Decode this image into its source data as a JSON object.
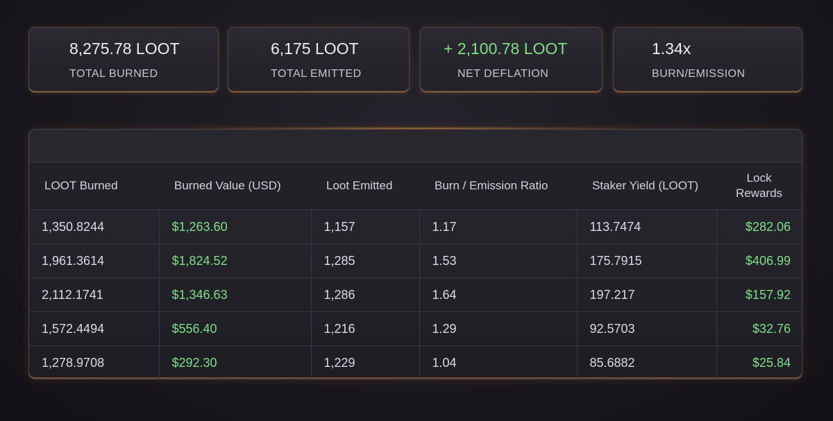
{
  "stats": [
    {
      "value": "8,275.78 LOOT",
      "label": "TOTAL BURNED",
      "positive": false
    },
    {
      "value": "6,175 LOOT",
      "label": "TOTAL EMITTED",
      "positive": false
    },
    {
      "value": "+ 2,100.78 LOOT",
      "label": "NET DEFLATION",
      "positive": true
    },
    {
      "value": "1.34x",
      "label": "BURN/EMISSION",
      "positive": false
    }
  ],
  "table": {
    "headers": [
      "LOOT Burned",
      "Burned Value (USD)",
      "Loot Emitted",
      "Burn / Emission Ratio",
      "Staker Yield (LOOT)",
      "Lock Rewards"
    ],
    "rows": [
      [
        "1,350.8244",
        "$1,263.60",
        "1,157",
        "1.17",
        "113.7474",
        "$282.06"
      ],
      [
        "1,961.3614",
        "$1,824.52",
        "1,285",
        "1.53",
        "175.7915",
        "$406.99"
      ],
      [
        "2,112.1741",
        "$1,346.63",
        "1,286",
        "1.64",
        "197.217",
        "$157.92"
      ],
      [
        "1,572.4494",
        "$556.40",
        "1,216",
        "1.29",
        "92.5703",
        "$32.76"
      ],
      [
        "1,278.9708",
        "$292.30",
        "1,229",
        "1.04",
        "85.6882",
        "$25.84"
      ]
    ]
  },
  "colors": {
    "positive": "#7fe08a",
    "accent_glow": "#f0963c"
  }
}
